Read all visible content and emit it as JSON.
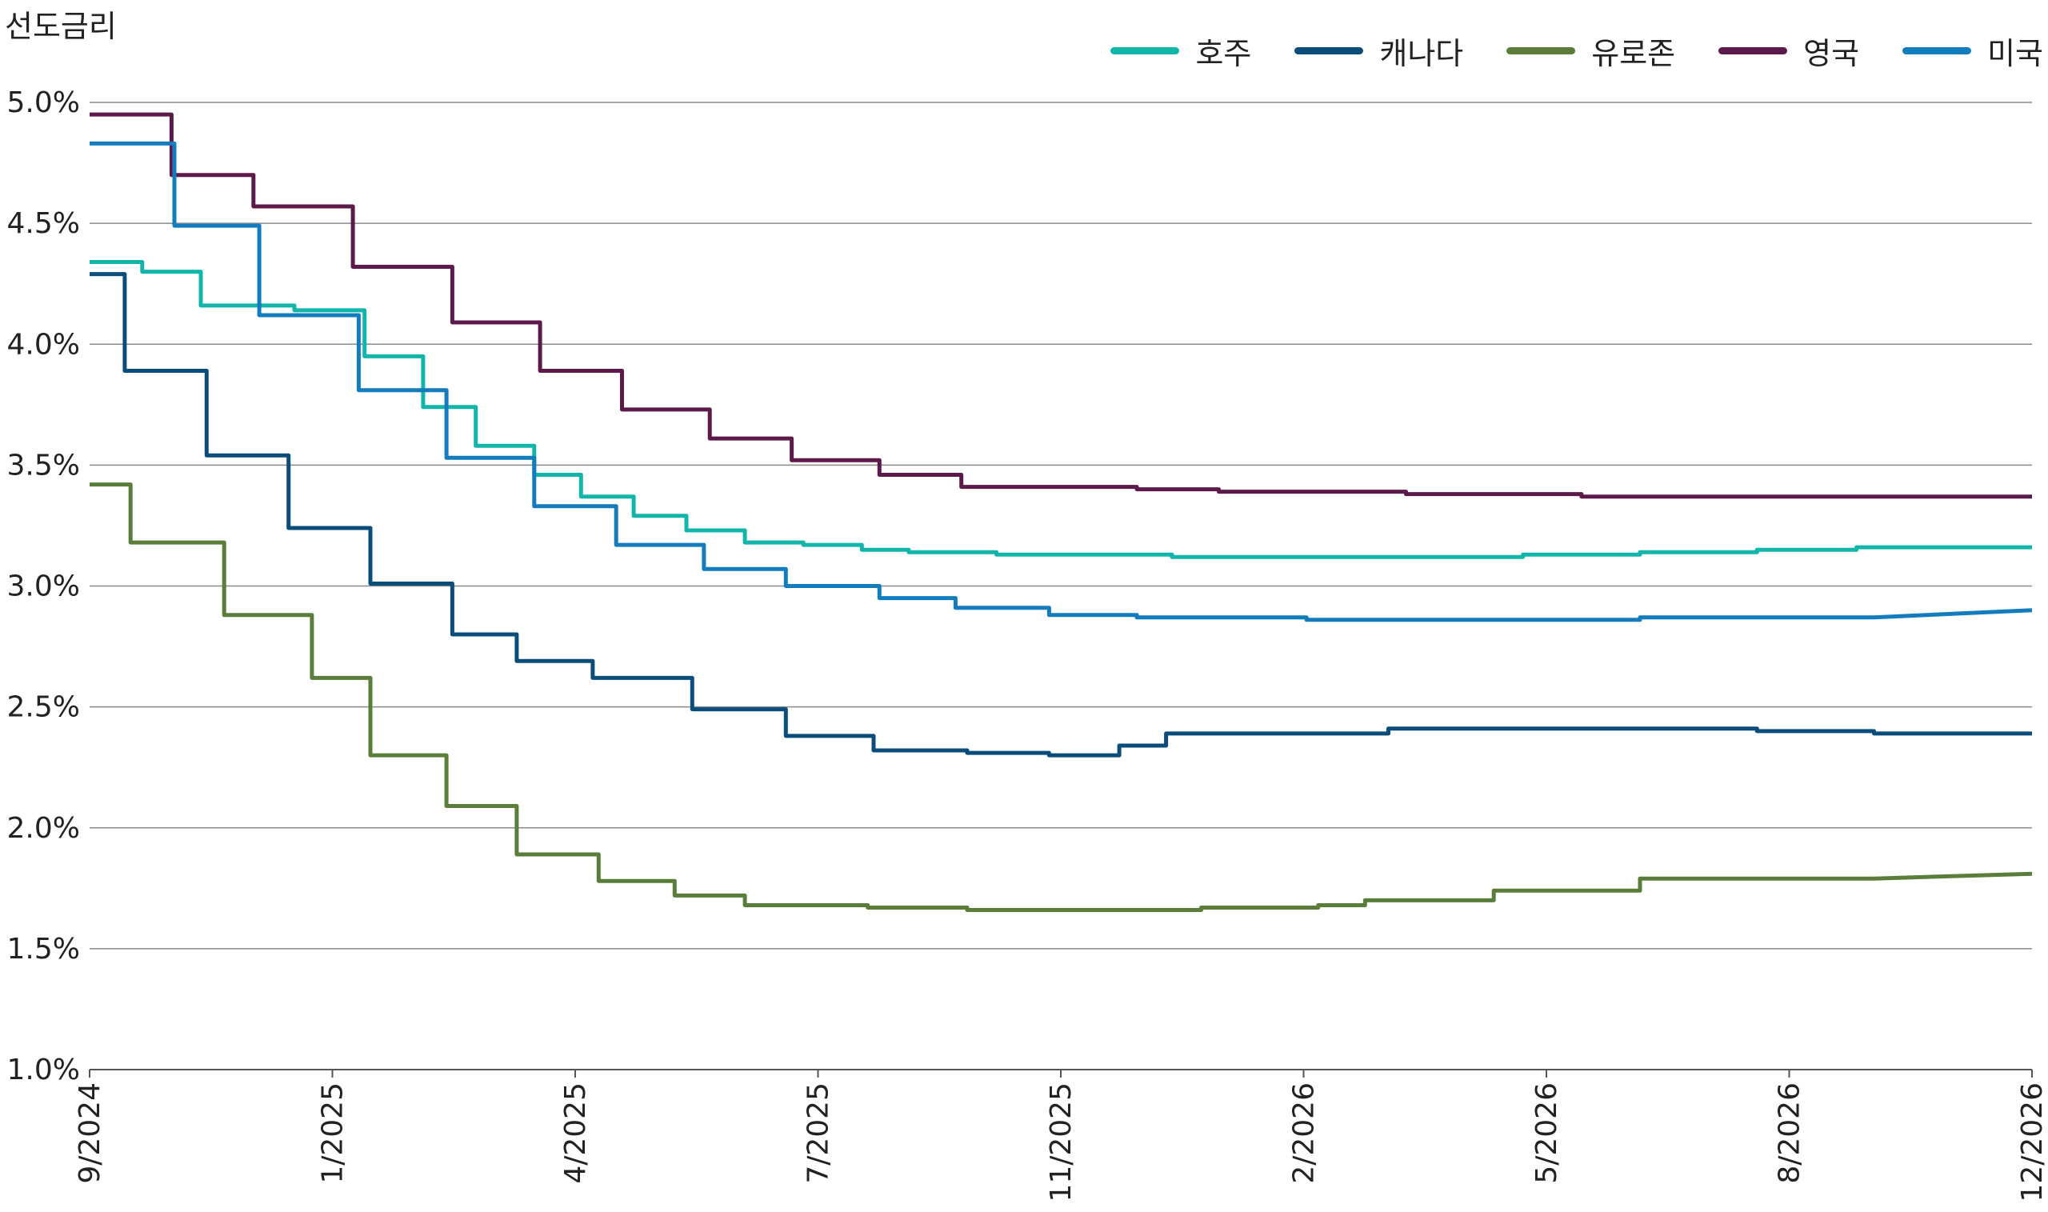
{
  "chart_data": {
    "type": "line",
    "ylabel": "선도금리",
    "xlabel": "",
    "ylim": [
      1.0,
      5.0
    ],
    "yticks": [
      "5.0%",
      "4.5%",
      "4.0%",
      "3.5%",
      "3.0%",
      "2.5%",
      "2.0%",
      "1.5%",
      "1.0%"
    ],
    "ytick_values": [
      5.0,
      4.5,
      4.0,
      3.5,
      3.0,
      2.5,
      2.0,
      1.5,
      1.0
    ],
    "xticks": [
      "9/2024",
      "1/2025",
      "4/2025",
      "7/2025",
      "11/2025",
      "2/2026",
      "5/2026",
      "8/2026",
      "12/2026"
    ],
    "legend_position": "top-right",
    "grid": "horizontal",
    "series": [
      {
        "name": "호주",
        "color": "#12b5aa",
        "x": [
          0,
          0.9,
          0.9,
          1.9,
          1.9,
          3.5,
          3.5,
          4.7,
          4.7,
          5.7,
          5.7,
          6.6,
          6.6,
          7.6,
          7.6,
          8.4,
          8.4,
          9.3,
          9.3,
          10.2,
          10.2,
          11.2,
          11.2,
          12.2,
          12.2,
          13.2,
          13.2,
          14.0,
          14.0,
          15.5,
          15.5,
          16.5,
          16.5,
          18.5,
          18.5,
          20.0,
          20.0,
          21.1,
          21.1,
          21.5,
          21.5,
          22.5,
          22.5,
          23.5,
          23.5,
          24.5,
          24.5,
          25.5,
          25.5,
          26.5,
          26.5,
          27.5,
          27.5,
          28.5,
          28.5,
          29.2,
          29.2,
          30.2,
          30.2,
          31.2,
          31.2,
          32.2,
          32.2,
          33.2
        ],
        "y": [
          4.34,
          4.34,
          4.3,
          4.3,
          4.16,
          4.16,
          4.14,
          4.14,
          3.95,
          3.95,
          3.74,
          3.74,
          3.58,
          3.58,
          3.46,
          3.46,
          3.37,
          3.37,
          3.29,
          3.29,
          3.23,
          3.23,
          3.18,
          3.18,
          3.17,
          3.17,
          3.15,
          3.15,
          3.14,
          3.14,
          3.13,
          3.13,
          3.13,
          3.13,
          3.12,
          3.12,
          3.12,
          3.12,
          3.12,
          3.12,
          3.12,
          3.12,
          3.12,
          3.12,
          3.12,
          3.12,
          3.13,
          3.13,
          3.13,
          3.13,
          3.14,
          3.14,
          3.14,
          3.14,
          3.15,
          3.15,
          3.15,
          3.15,
          3.16,
          3.16,
          3.16,
          3.16,
          3.16,
          3.16
        ]
      },
      {
        "name": "캐나다",
        "color": "#0b4d7a",
        "x": [
          0,
          0.6,
          0.6,
          2.0,
          2.0,
          3.4,
          3.4,
          4.8,
          4.8,
          6.2,
          6.2,
          7.3,
          7.3,
          8.6,
          8.6,
          10.3,
          10.3,
          11.9,
          11.9,
          13.4,
          13.4,
          15.0,
          15.0,
          16.4,
          16.4,
          17.6,
          17.6,
          18.4,
          18.4,
          20.0,
          20.0,
          22.2,
          22.2,
          23.5,
          23.5,
          25.5,
          25.5,
          28.5,
          28.5,
          30.5,
          30.5,
          33.2
        ],
        "y": [
          4.29,
          4.29,
          3.89,
          3.89,
          3.54,
          3.54,
          3.24,
          3.24,
          3.01,
          3.01,
          2.8,
          2.8,
          2.69,
          2.69,
          2.62,
          2.62,
          2.49,
          2.49,
          2.38,
          2.38,
          2.32,
          2.32,
          2.31,
          2.31,
          2.3,
          2.3,
          2.34,
          2.34,
          2.39,
          2.39,
          2.39,
          2.39,
          2.41,
          2.41,
          2.41,
          2.41,
          2.41,
          2.41,
          2.4,
          2.4,
          2.39,
          2.39
        ]
      },
      {
        "name": "유로존",
        "color": "#5a7d3a",
        "x": [
          0,
          0.7,
          0.7,
          2.3,
          2.3,
          3.8,
          3.8,
          4.8,
          4.8,
          6.1,
          6.1,
          7.3,
          7.3,
          8.7,
          8.7,
          10.0,
          10.0,
          11.2,
          11.2,
          13.3,
          13.3,
          15.0,
          15.0,
          16.5,
          16.5,
          17.3,
          17.3,
          19.0,
          19.0,
          19.4,
          19.4,
          21.0,
          21.0,
          21.8,
          21.8,
          22.6,
          22.6,
          24.0,
          24.0,
          24.6,
          24.6,
          26.5,
          26.5,
          27.5,
          27.5,
          28.4,
          28.4,
          30.5,
          30.5,
          33.2
        ],
        "y": [
          3.42,
          3.42,
          3.18,
          3.18,
          2.88,
          2.88,
          2.62,
          2.62,
          2.3,
          2.3,
          2.09,
          2.09,
          1.89,
          1.89,
          1.78,
          1.78,
          1.72,
          1.72,
          1.68,
          1.68,
          1.67,
          1.67,
          1.66,
          1.66,
          1.66,
          1.66,
          1.66,
          1.66,
          1.67,
          1.67,
          1.67,
          1.67,
          1.68,
          1.68,
          1.7,
          1.7,
          1.7,
          1.7,
          1.74,
          1.74,
          1.74,
          1.74,
          1.79,
          1.79,
          1.79,
          1.79,
          1.79,
          1.79,
          1.79,
          1.81
        ]
      },
      {
        "name": "영국",
        "color": "#5c1a4a",
        "x": [
          0,
          1.4,
          1.4,
          2.8,
          2.8,
          4.5,
          4.5,
          6.2,
          6.2,
          7.7,
          7.7,
          9.1,
          9.1,
          10.6,
          10.6,
          12.0,
          12.0,
          13.5,
          13.5,
          14.9,
          14.9,
          16.4,
          16.4,
          17.9,
          17.9,
          19.3,
          19.3,
          20.8,
          20.8,
          22.5,
          22.5,
          24.0,
          24.0,
          25.5,
          25.5,
          28.5,
          28.5,
          33.2
        ],
        "y": [
          4.95,
          4.95,
          4.7,
          4.7,
          4.57,
          4.57,
          4.32,
          4.32,
          4.09,
          4.09,
          3.89,
          3.89,
          3.73,
          3.73,
          3.61,
          3.61,
          3.52,
          3.52,
          3.46,
          3.46,
          3.41,
          3.41,
          3.41,
          3.41,
          3.4,
          3.4,
          3.39,
          3.39,
          3.39,
          3.39,
          3.38,
          3.38,
          3.38,
          3.38,
          3.37,
          3.37,
          3.37,
          3.37
        ]
      },
      {
        "name": "미국",
        "color": "#137cbd",
        "x": [
          0,
          1.45,
          1.45,
          2.9,
          2.9,
          4.6,
          4.6,
          6.1,
          6.1,
          7.6,
          7.6,
          9.0,
          9.0,
          10.5,
          10.5,
          11.9,
          11.9,
          13.5,
          13.5,
          14.8,
          14.8,
          16.4,
          16.4,
          17.9,
          17.9,
          19.3,
          19.3,
          20.8,
          20.8,
          23.5,
          23.5,
          26.5,
          26.5,
          30.5,
          30.5,
          33.2
        ],
        "y": [
          4.83,
          4.83,
          4.49,
          4.49,
          4.12,
          4.12,
          3.81,
          3.81,
          3.53,
          3.53,
          3.33,
          3.33,
          3.17,
          3.17,
          3.07,
          3.07,
          3.0,
          3.0,
          2.95,
          2.95,
          2.91,
          2.91,
          2.88,
          2.88,
          2.87,
          2.87,
          2.87,
          2.87,
          2.86,
          2.86,
          2.86,
          2.86,
          2.87,
          2.87,
          2.87,
          2.9
        ]
      }
    ]
  }
}
